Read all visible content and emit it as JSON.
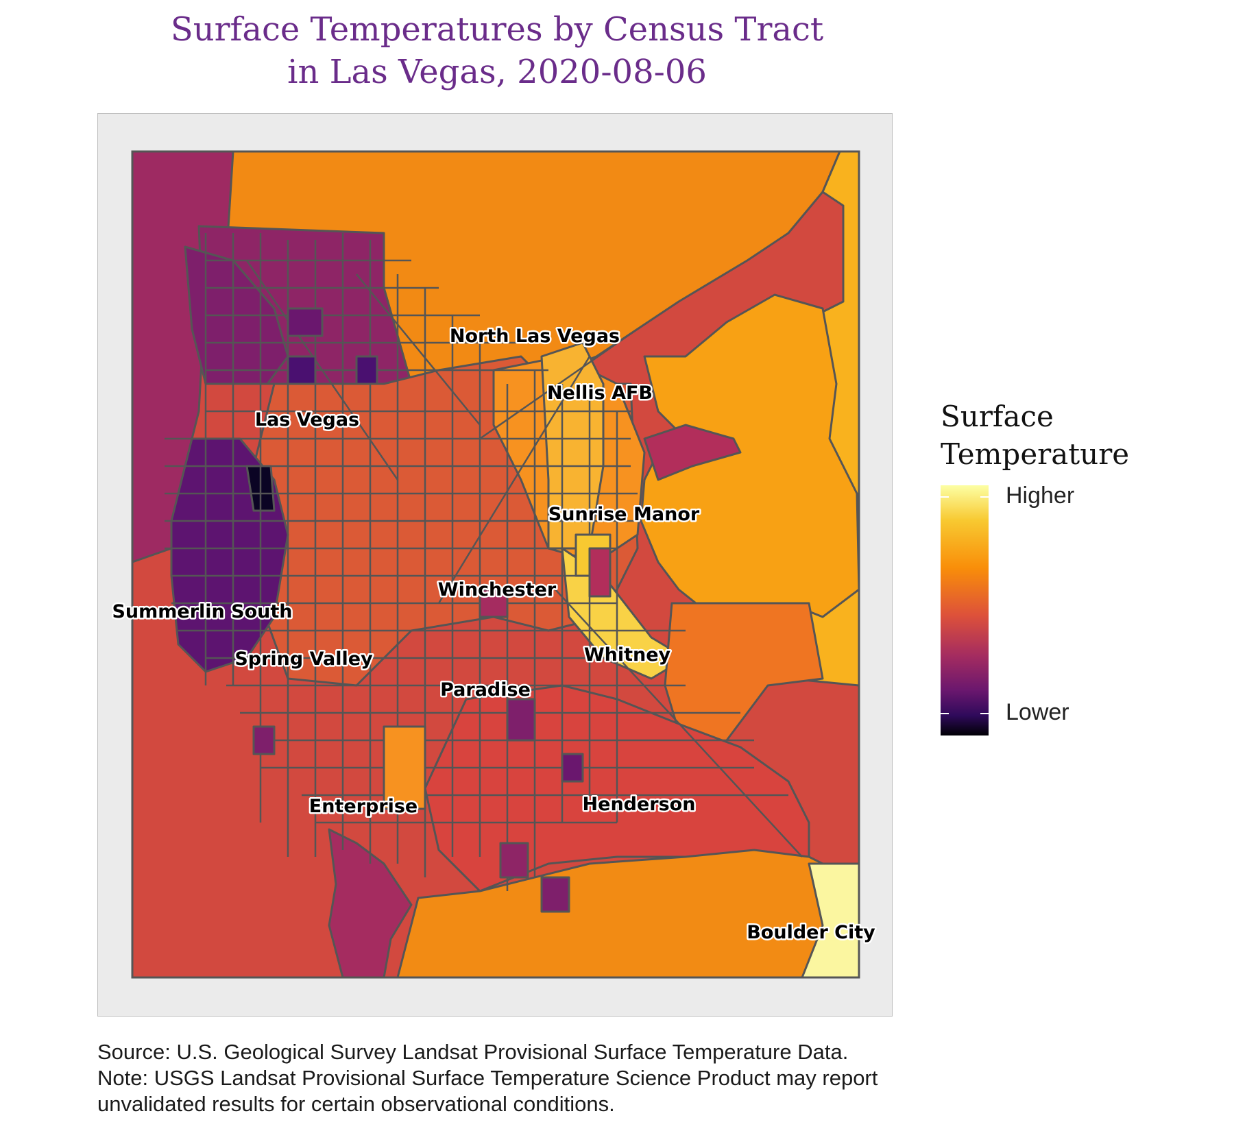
{
  "title_line1": "Surface Temperatures by Census Tract",
  "title_line2": "in Las Vegas, 2020-08-06",
  "legend": {
    "title_line1": "Surface",
    "title_line2": "Temperature",
    "high_label": "Higher",
    "low_label": "Lower",
    "colors": [
      "#fcffa4",
      "#f8c931",
      "#f98e09",
      "#dd513a",
      "#a52c60",
      "#6a176e",
      "#2f0a5b",
      "#000004"
    ]
  },
  "places": {
    "north_las_vegas": "North Las Vegas",
    "nellis_afb": "Nellis AFB",
    "las_vegas": "Las Vegas",
    "sunrise_manor": "Sunrise Manor",
    "winchester": "Winchester",
    "summerlin_south": "Summerlin South",
    "whitney": "Whitney",
    "spring_valley": "Spring Valley",
    "paradise": "Paradise",
    "enterprise": "Enterprise",
    "henderson": "Henderson",
    "boulder_city": "Boulder City"
  },
  "caption": {
    "source": "Source: U.S. Geological Survey Landsat Provisional Surface Temperature Data.",
    "note_line1": "Note: USGS Landsat Provisional Surface Temperature Science Product may report",
    "note_line2": "unvalidated results for certain observational conditions."
  }
}
